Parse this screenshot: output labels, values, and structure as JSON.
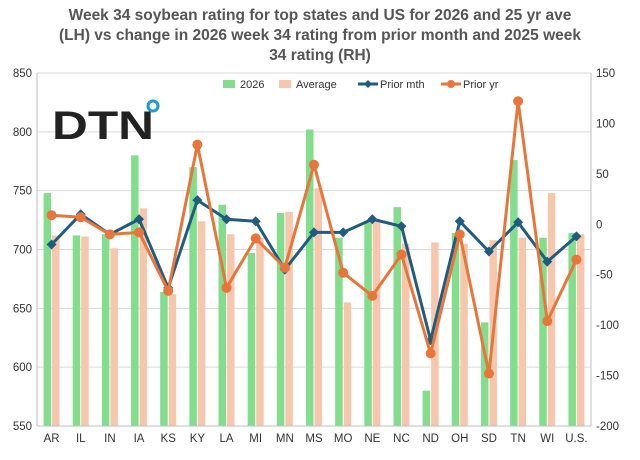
{
  "logo": {
    "text": "DTN",
    "ring_color": "#1a9bd7"
  },
  "chart_data": {
    "type": "bar",
    "title_lines": [
      "Week 34 soybean rating for  top states and US for 2026 and 25 yr ave",
      "(LH) vs change in 2026 week 34 rating from prior month and 2025 week",
      "34 rating (RH)"
    ],
    "categories": [
      "AR",
      "IL",
      "IN",
      "IA",
      "KS",
      "KY",
      "LA",
      "MI",
      "MN",
      "MS",
      "MO",
      "NE",
      "NC",
      "ND",
      "OH",
      "SD",
      "TN",
      "WI",
      "U.S."
    ],
    "left_axis": {
      "min": 550,
      "max": 850,
      "ticks": [
        550,
        600,
        650,
        700,
        750,
        800,
        850
      ]
    },
    "right_axis": {
      "min": -200,
      "max": 150,
      "ticks": [
        -200,
        -150,
        -100,
        -50,
        0,
        50,
        100,
        150
      ]
    },
    "series": [
      {
        "name": "2026",
        "kind": "bar",
        "axis": "left",
        "color": "#82dd8c",
        "values": [
          748,
          712,
          713,
          780,
          664,
          770,
          738,
          697,
          731,
          802,
          710,
          723,
          736,
          580,
          714,
          638,
          776,
          710,
          714
        ]
      },
      {
        "name": "Average",
        "kind": "bar",
        "axis": "left",
        "color": "#f6c7ad",
        "values": [
          712,
          711,
          701,
          735,
          662,
          724,
          713,
          710,
          732,
          752,
          655,
          726,
          705,
          706,
          705,
          708,
          710,
          748,
          713
        ]
      },
      {
        "name": "Prior mth",
        "kind": "line",
        "axis": "right",
        "color": "#1f5c80",
        "values": [
          -20,
          10,
          -10,
          5,
          -63,
          24,
          5,
          3,
          -45,
          -8,
          -8,
          5,
          -2,
          -115,
          3,
          -27,
          2,
          -37,
          -12
        ]
      },
      {
        "name": "Prior yr",
        "kind": "line",
        "axis": "right",
        "color": "#e8753a",
        "values": [
          9,
          7,
          -10,
          -8,
          -66,
          79,
          -63,
          -14,
          -43,
          59,
          -48,
          -71,
          -30,
          -128,
          -10,
          -148,
          122,
          -96,
          -35
        ]
      }
    ],
    "grid": "horizontal",
    "legend_position": "top"
  }
}
